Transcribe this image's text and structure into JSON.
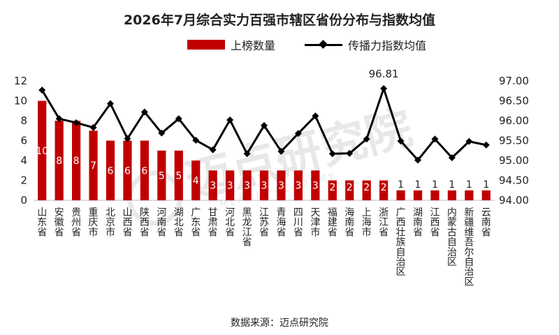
{
  "chart_data": {
    "type": "bar+line",
    "title": "2026年7月综合实力百强市辖区省份分布与指数均值",
    "categories": [
      "山东省",
      "安徽省",
      "贵州省",
      "重庆市",
      "北京市",
      "山西省",
      "陕西省",
      "河南省",
      "湖北省",
      "广东省",
      "甘肃省",
      "河北省",
      "黑龙江省",
      "江苏省",
      "青海省",
      "四川省",
      "天津市",
      "福建省",
      "海南省",
      "上海市",
      "浙江省",
      "广西壮族自治区",
      "湖南省",
      "江西省",
      "内蒙古自治区",
      "新疆维吾尔自治区",
      "云南省"
    ],
    "series": [
      {
        "name": "上榜数量",
        "type": "bar",
        "axis": "left",
        "color": "#c00000",
        "values": [
          10,
          8,
          8,
          7,
          6,
          6,
          6,
          5,
          5,
          4,
          3,
          3,
          3,
          3,
          3,
          3,
          3,
          2,
          2,
          2,
          2,
          1,
          1,
          1,
          1,
          1,
          1
        ]
      },
      {
        "name": "传播力指数均值",
        "type": "line",
        "axis": "right",
        "color": "#000000",
        "values": [
          96.77,
          96.05,
          95.95,
          95.83,
          96.43,
          95.55,
          96.22,
          95.69,
          96.05,
          95.51,
          95.27,
          96.02,
          95.17,
          95.88,
          95.23,
          95.68,
          96.12,
          95.17,
          95.18,
          95.54,
          96.81,
          95.49,
          95.01,
          95.54,
          95.07,
          95.48,
          95.39
        ]
      }
    ],
    "y_left": {
      "ylim": [
        0,
        12
      ],
      "ticks": [
        "0",
        "2",
        "4",
        "6",
        "8",
        "10",
        "12"
      ]
    },
    "y_right": {
      "ylim": [
        94.0,
        97.0
      ],
      "ticks": [
        "94.00",
        "94.50",
        "95.00",
        "95.50",
        "96.00",
        "96.50",
        "97.00"
      ]
    },
    "line_annotation": {
      "index": 20,
      "label": "96.81"
    },
    "grid": false,
    "legend_position": "top-center"
  },
  "watermark": {
    "text": "迈点研究院",
    "subtext": "MEADIN ACADEMY"
  },
  "source": "数据来源：迈点研究院"
}
